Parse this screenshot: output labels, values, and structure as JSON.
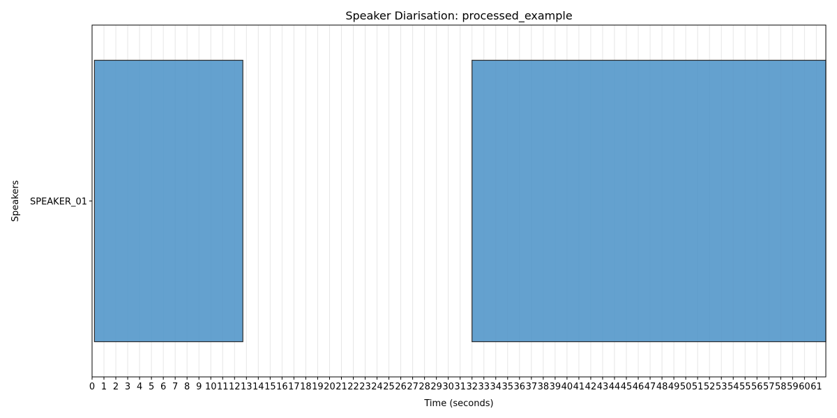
{
  "chart_data": {
    "type": "bar",
    "orientation": "horizontal",
    "title": "Speaker Diarisation: processed_example",
    "xlabel": "Time (seconds)",
    "ylabel": "Speakers",
    "xlim": [
      0,
      61.8
    ],
    "speakers": [
      "SPEAKER_01"
    ],
    "segments": [
      {
        "speaker": "SPEAKER_01",
        "start": 0.2,
        "end": 12.7
      },
      {
        "speaker": "SPEAKER_01",
        "start": 32.0,
        "end": 61.8
      }
    ],
    "x_ticks": [
      0,
      1,
      2,
      3,
      4,
      5,
      6,
      7,
      8,
      9,
      10,
      11,
      12,
      13,
      14,
      15,
      16,
      17,
      18,
      19,
      20,
      21,
      22,
      23,
      24,
      25,
      26,
      27,
      28,
      29,
      30,
      31,
      32,
      33,
      34,
      35,
      36,
      37,
      38,
      39,
      40,
      41,
      42,
      43,
      44,
      45,
      46,
      47,
      48,
      49,
      50,
      51,
      52,
      53,
      54,
      55,
      56,
      57,
      58,
      59,
      60,
      61
    ],
    "grid": "x-axis vertical lines",
    "colors": {
      "bar_fill": "#4f94c8",
      "bar_edge": "#2b2b2b",
      "grid": "#e6e6e6",
      "axes": "#000000"
    }
  }
}
